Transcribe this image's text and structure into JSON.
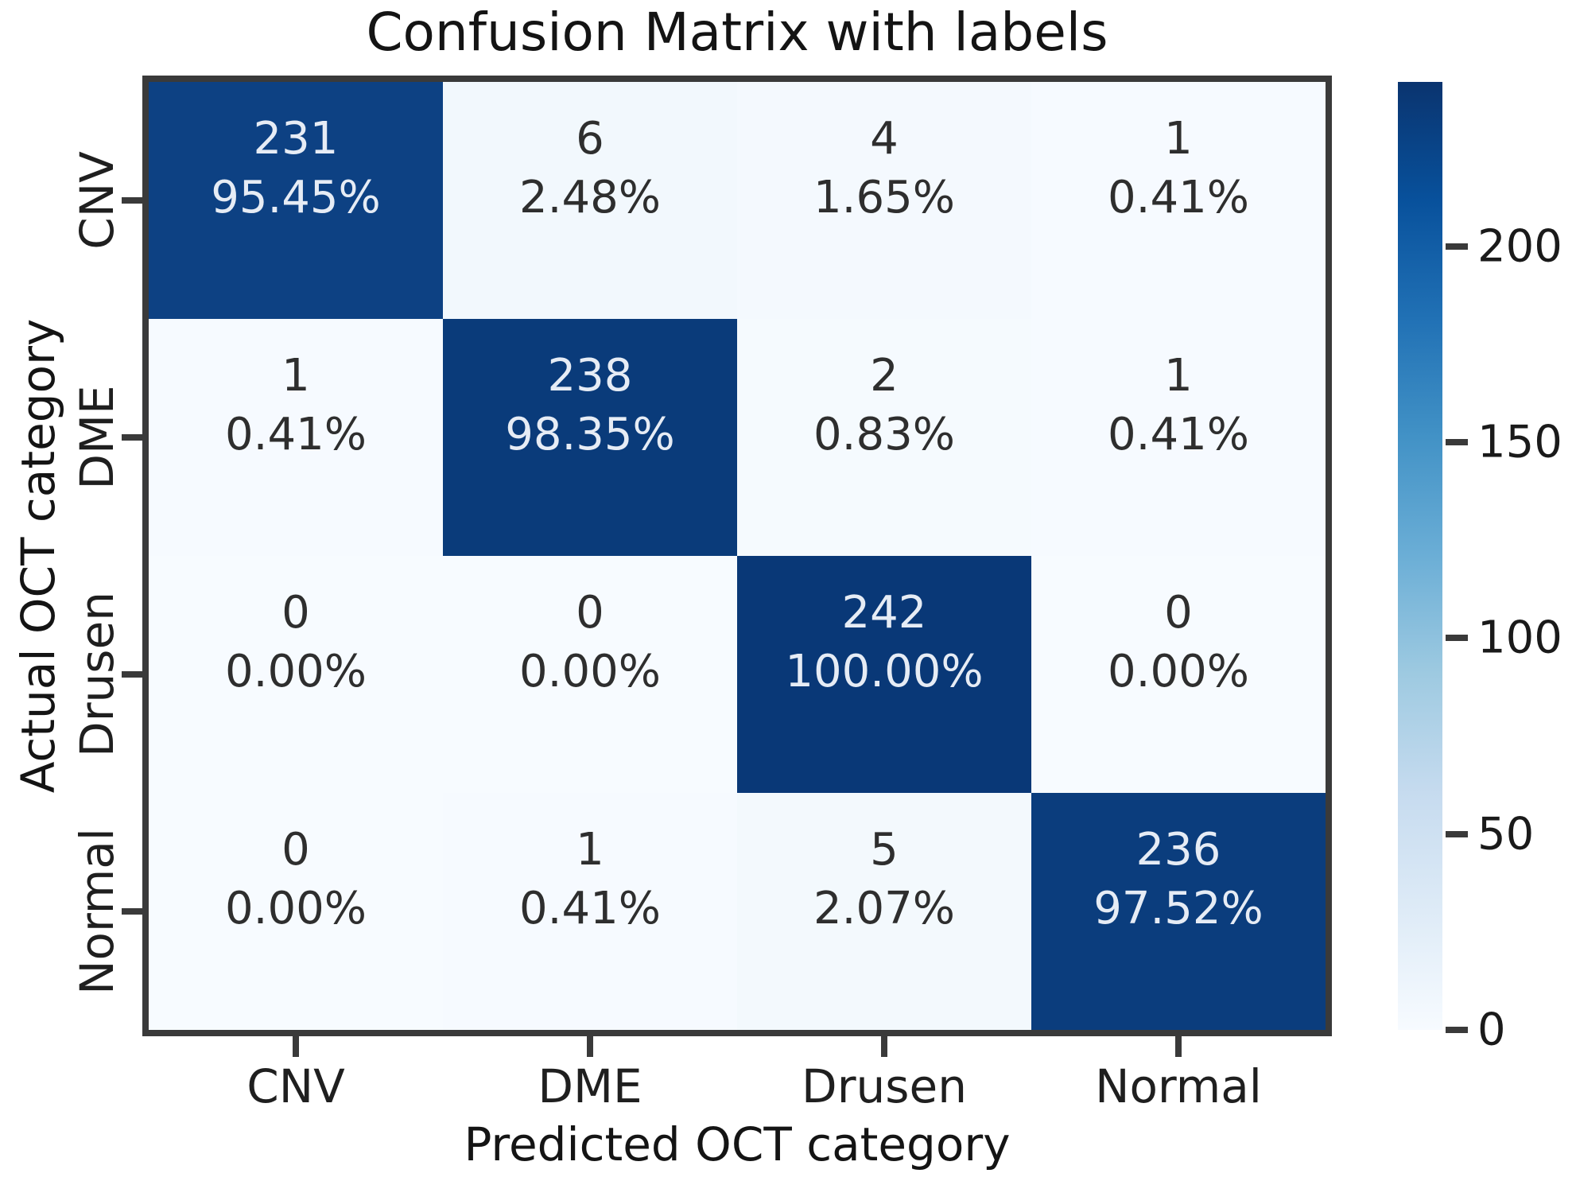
{
  "title": "Confusion Matrix with labels",
  "chart_data": {
    "type": "heatmap",
    "title": "Confusion Matrix with labels",
    "xlabel": "Predicted OCT category",
    "ylabel": "Actual OCT category",
    "x_categories": [
      "CNV",
      "DME",
      "Drusen",
      "Normal"
    ],
    "y_categories": [
      "CNV",
      "DME",
      "Drusen",
      "Normal"
    ],
    "colormap": "Blues",
    "vmin": 0,
    "vmax": 242,
    "colorbar_ticks": [
      0,
      50,
      100,
      150,
      200
    ],
    "colorbar_position": "right",
    "grid": false,
    "rows": [
      {
        "label": "CNV",
        "cells": [
          {
            "count": "231",
            "percent": "95.45%",
            "bg": "#0d4183",
            "fg": "#e6ecf5"
          },
          {
            "count": "6",
            "percent": "2.48%",
            "bg": "#f2f8fd",
            "fg": "#2e2e2e"
          },
          {
            "count": "4",
            "percent": "1.65%",
            "bg": "#f4f9fe",
            "fg": "#2e2e2e"
          },
          {
            "count": "1",
            "percent": "0.41%",
            "bg": "#f6faff",
            "fg": "#2e2e2e"
          }
        ]
      },
      {
        "label": "DME",
        "cells": [
          {
            "count": "1",
            "percent": "0.41%",
            "bg": "#f6faff",
            "fg": "#2e2e2e"
          },
          {
            "count": "238",
            "percent": "98.35%",
            "bg": "#0a3b7a",
            "fg": "#e6ecf5"
          },
          {
            "count": "2",
            "percent": "0.83%",
            "bg": "#f5fafe",
            "fg": "#2e2e2e"
          },
          {
            "count": "1",
            "percent": "0.41%",
            "bg": "#f6faff",
            "fg": "#2e2e2e"
          }
        ]
      },
      {
        "label": "Drusen",
        "cells": [
          {
            "count": "0",
            "percent": "0.00%",
            "bg": "#f7fbff",
            "fg": "#2e2e2e"
          },
          {
            "count": "0",
            "percent": "0.00%",
            "bg": "#f7fbff",
            "fg": "#2e2e2e"
          },
          {
            "count": "242",
            "percent": "100.00%",
            "bg": "#093877",
            "fg": "#e6ecf5"
          },
          {
            "count": "0",
            "percent": "0.00%",
            "bg": "#f7fbff",
            "fg": "#2e2e2e"
          }
        ]
      },
      {
        "label": "Normal",
        "cells": [
          {
            "count": "0",
            "percent": "0.00%",
            "bg": "#f7fbff",
            "fg": "#2e2e2e"
          },
          {
            "count": "1",
            "percent": "0.41%",
            "bg": "#f6faff",
            "fg": "#2e2e2e"
          },
          {
            "count": "5",
            "percent": "2.07%",
            "bg": "#f3f9fd",
            "fg": "#2e2e2e"
          },
          {
            "count": "236",
            "percent": "97.52%",
            "bg": "#0b3d7d",
            "fg": "#e6ecf5"
          }
        ]
      }
    ]
  },
  "colors": {
    "background": "#ffffff",
    "spine": "#3a3a3a",
    "tick": "#3a3a3a",
    "text": "#1a1a1a",
    "colorbar_gradient": [
      "#f7fbff",
      "#deebf7",
      "#c6dbef",
      "#9ecae1",
      "#6baed6",
      "#4292c6",
      "#2171b5",
      "#08519c",
      "#0a346f"
    ]
  }
}
